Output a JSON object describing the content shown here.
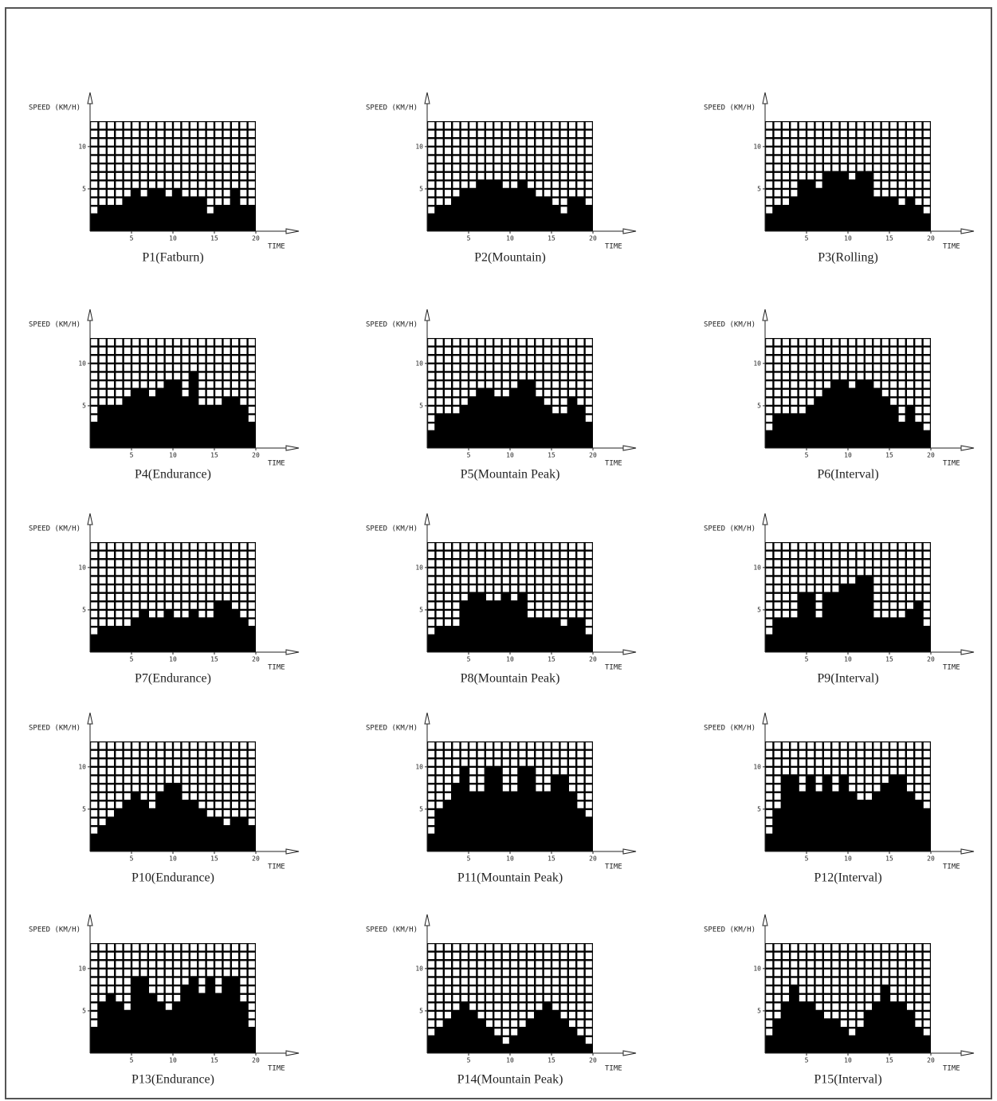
{
  "chart_data": [
    {
      "type": "bar",
      "title": "P1(Fatburn)",
      "y_label": "SPEED (KM/H)",
      "x_label": "TIME",
      "color": "#000000",
      "xlim": [
        0,
        20
      ],
      "xticks": [
        5,
        10,
        15,
        20
      ],
      "ylim": [
        0,
        13
      ],
      "yticks": [
        5,
        10
      ],
      "values": [
        2,
        3,
        3,
        3,
        4,
        5,
        4,
        5,
        5,
        4,
        5,
        4,
        4,
        4,
        2,
        3,
        3,
        5,
        3,
        3
      ]
    },
    {
      "type": "bar",
      "title": "P2(Mountain)",
      "y_label": "SPEED (KM/H)",
      "x_label": "TIME",
      "color": "#000000",
      "xlim": [
        0,
        20
      ],
      "xticks": [
        5,
        10,
        15,
        20
      ],
      "ylim": [
        0,
        13
      ],
      "yticks": [
        5,
        10
      ],
      "values": [
        2,
        3,
        3,
        4,
        5,
        5,
        6,
        6,
        6,
        5,
        5,
        6,
        5,
        4,
        4,
        3,
        2,
        4,
        4,
        3
      ]
    },
    {
      "type": "bar",
      "title": "P3(Rolling)",
      "y_label": "SPEED (KM/H)",
      "x_label": "TIME",
      "color": "#000000",
      "xlim": [
        0,
        20
      ],
      "xticks": [
        5,
        10,
        15,
        20
      ],
      "ylim": [
        0,
        13
      ],
      "yticks": [
        5,
        10
      ],
      "values": [
        2,
        3,
        3,
        4,
        6,
        6,
        5,
        7,
        7,
        7,
        6,
        7,
        7,
        4,
        4,
        4,
        3,
        4,
        3,
        2
      ]
    },
    {
      "type": "bar",
      "title": "P4(Endurance)",
      "y_label": "SPEED (KM/H)",
      "x_label": "TIME",
      "color": "#000000",
      "xlim": [
        0,
        20
      ],
      "xticks": [
        5,
        10,
        15,
        20
      ],
      "ylim": [
        0,
        13
      ],
      "yticks": [
        5,
        10
      ],
      "values": [
        3,
        5,
        5,
        5,
        6,
        7,
        7,
        6,
        7,
        8,
        8,
        6,
        9,
        5,
        5,
        5,
        6,
        6,
        5,
        3
      ]
    },
    {
      "type": "bar",
      "title": "P5(Mountain Peak)",
      "y_label": "SPEED (KM/H)",
      "x_label": "TIME",
      "color": "#000000",
      "xlim": [
        0,
        20
      ],
      "xticks": [
        5,
        10,
        15,
        20
      ],
      "ylim": [
        0,
        13
      ],
      "yticks": [
        5,
        10
      ],
      "values": [
        2,
        4,
        4,
        4,
        5,
        6,
        7,
        7,
        6,
        6,
        7,
        8,
        8,
        6,
        5,
        4,
        4,
        6,
        5,
        3
      ]
    },
    {
      "type": "bar",
      "title": "P6(Interval)",
      "y_label": "SPEED (KM/H)",
      "x_label": "TIME",
      "color": "#000000",
      "xlim": [
        0,
        20
      ],
      "xticks": [
        5,
        10,
        15,
        20
      ],
      "ylim": [
        0,
        13
      ],
      "yticks": [
        5,
        10
      ],
      "values": [
        2,
        4,
        4,
        4,
        4,
        5,
        6,
        7,
        8,
        8,
        7,
        8,
        8,
        7,
        6,
        5,
        3,
        5,
        3,
        2
      ]
    },
    {
      "type": "bar",
      "title": "P7(Endurance)",
      "y_label": "SPEED (KM/H)",
      "x_label": "TIME",
      "color": "#000000",
      "xlim": [
        0,
        20
      ],
      "xticks": [
        5,
        10,
        15,
        20
      ],
      "ylim": [
        0,
        13
      ],
      "yticks": [
        5,
        10
      ],
      "values": [
        2,
        3,
        3,
        3,
        3,
        4,
        5,
        4,
        4,
        5,
        4,
        4,
        5,
        4,
        4,
        6,
        6,
        5,
        4,
        3
      ]
    },
    {
      "type": "bar",
      "title": "P8(Mountain Peak)",
      "y_label": "SPEED (KM/H)",
      "x_label": "TIME",
      "color": "#000000",
      "xlim": [
        0,
        20
      ],
      "xticks": [
        5,
        10,
        15,
        20
      ],
      "ylim": [
        0,
        13
      ],
      "yticks": [
        5,
        10
      ],
      "values": [
        2,
        3,
        3,
        3,
        6,
        7,
        7,
        6,
        6,
        7,
        6,
        7,
        4,
        4,
        4,
        4,
        3,
        4,
        4,
        2
      ]
    },
    {
      "type": "bar",
      "title": "P9(Interval)",
      "y_label": "SPEED (KM/H)",
      "x_label": "TIME",
      "color": "#000000",
      "xlim": [
        0,
        20
      ],
      "xticks": [
        5,
        10,
        15,
        20
      ],
      "ylim": [
        0,
        13
      ],
      "yticks": [
        5,
        10
      ],
      "values": [
        2,
        4,
        4,
        4,
        7,
        7,
        4,
        7,
        7,
        8,
        8,
        9,
        9,
        4,
        4,
        4,
        4,
        5,
        6,
        3
      ]
    },
    {
      "type": "bar",
      "title": "P10(Endurance)",
      "y_label": "SPEED (KM/H)",
      "x_label": "TIME",
      "color": "#000000",
      "xlim": [
        0,
        20
      ],
      "xticks": [
        5,
        10,
        15,
        20
      ],
      "ylim": [
        0,
        13
      ],
      "yticks": [
        5,
        10
      ],
      "values": [
        2,
        3,
        4,
        5,
        6,
        7,
        6,
        5,
        7,
        8,
        8,
        6,
        6,
        5,
        4,
        4,
        3,
        4,
        4,
        3
      ]
    },
    {
      "type": "bar",
      "title": "P11(Mountain Peak)",
      "y_label": "SPEED (KM/H)",
      "x_label": "TIME",
      "color": "#000000",
      "xlim": [
        0,
        20
      ],
      "xticks": [
        5,
        10,
        15,
        20
      ],
      "ylim": [
        0,
        13
      ],
      "yticks": [
        5,
        10
      ],
      "values": [
        2,
        5,
        6,
        8,
        10,
        7,
        7,
        10,
        10,
        7,
        7,
        10,
        10,
        7,
        7,
        9,
        9,
        7,
        5,
        4
      ]
    },
    {
      "type": "bar",
      "title": "P12(Interval)",
      "y_label": "SPEED (KM/H)",
      "x_label": "TIME",
      "color": "#000000",
      "xlim": [
        0,
        20
      ],
      "xticks": [
        5,
        10,
        15,
        20
      ],
      "ylim": [
        0,
        13
      ],
      "yticks": [
        5,
        10
      ],
      "values": [
        2,
        5,
        9,
        9,
        7,
        9,
        7,
        9,
        7,
        9,
        7,
        6,
        6,
        7,
        8,
        9,
        9,
        7,
        6,
        5
      ]
    },
    {
      "type": "bar",
      "title": "P13(Endurance)",
      "y_label": "SPEED (KM/H)",
      "x_label": "TIME",
      "color": "#000000",
      "xlim": [
        0,
        20
      ],
      "xticks": [
        5,
        10,
        15,
        20
      ],
      "ylim": [
        0,
        13
      ],
      "yticks": [
        5,
        10
      ],
      "values": [
        3,
        6,
        7,
        6,
        5,
        9,
        9,
        7,
        6,
        5,
        6,
        8,
        9,
        7,
        9,
        7,
        9,
        9,
        6,
        3
      ]
    },
    {
      "type": "bar",
      "title": "P14(Mountain Peak)",
      "y_label": "SPEED (KM/H)",
      "x_label": "TIME",
      "color": "#000000",
      "xlim": [
        0,
        20
      ],
      "xticks": [
        5,
        10,
        15,
        20
      ],
      "ylim": [
        0,
        13
      ],
      "yticks": [
        5,
        10
      ],
      "values": [
        2,
        3,
        4,
        5,
        6,
        5,
        4,
        3,
        2,
        1,
        2,
        3,
        4,
        5,
        6,
        5,
        4,
        3,
        2,
        1
      ]
    },
    {
      "type": "bar",
      "title": "P15(Interval)",
      "y_label": "SPEED (KM/H)",
      "x_label": "TIME",
      "color": "#000000",
      "xlim": [
        0,
        20
      ],
      "xticks": [
        5,
        10,
        15,
        20
      ],
      "ylim": [
        0,
        13
      ],
      "yticks": [
        5,
        10
      ],
      "values": [
        2,
        4,
        6,
        8,
        6,
        6,
        5,
        4,
        4,
        3,
        2,
        3,
        5,
        6,
        8,
        6,
        6,
        5,
        3,
        2
      ]
    }
  ]
}
